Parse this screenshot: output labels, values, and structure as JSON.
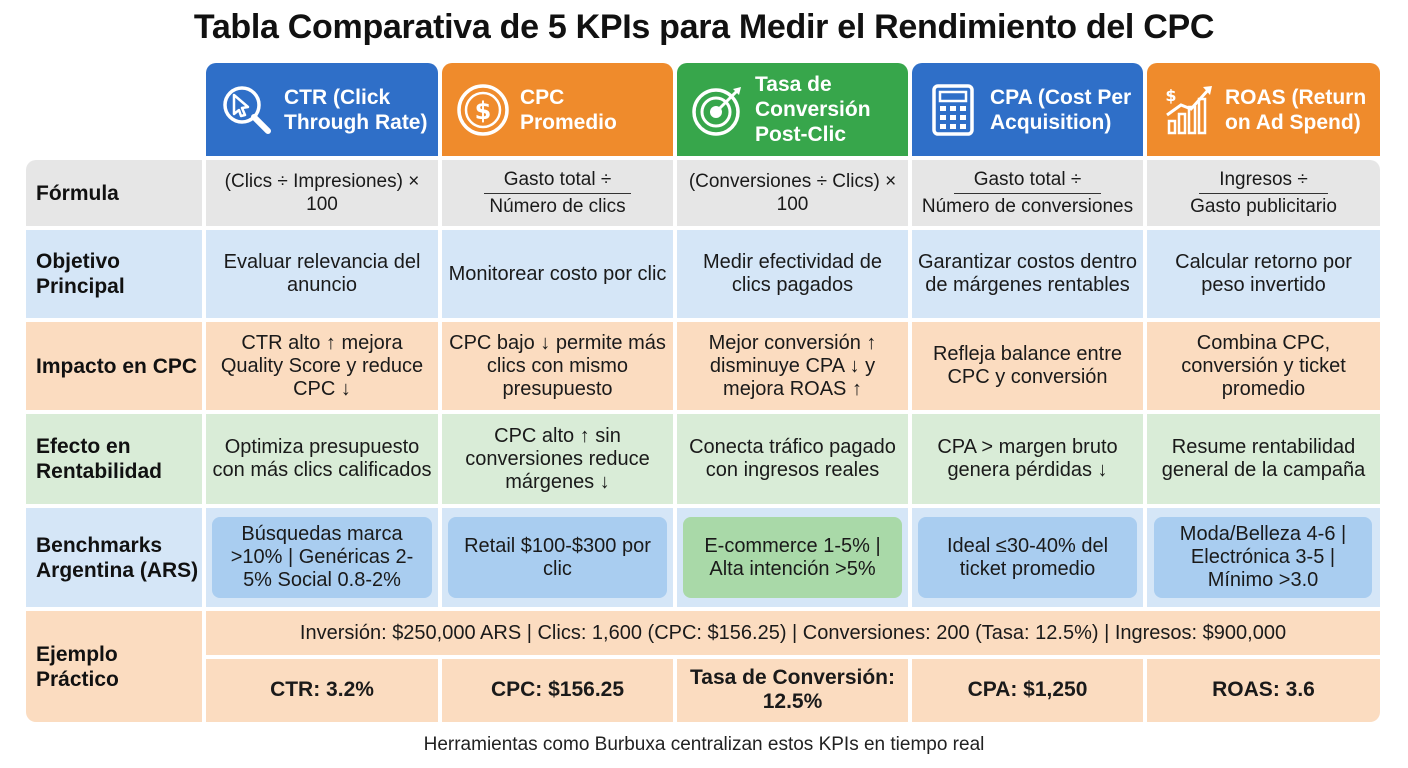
{
  "title": "Tabla Comparativa de 5 KPIs para Medir el Rendimiento del CPC",
  "columns": [
    {
      "label": "CTR (Click Through Rate)",
      "icon": "cursor-magnifier-icon",
      "color": "#2f6fc8"
    },
    {
      "label": "CPC Promedio",
      "icon": "dollar-coin-icon",
      "color": "#ef8b2c"
    },
    {
      "label": "Tasa de Conversión Post-Clic",
      "icon": "target-arrow-icon",
      "color": "#37a64b"
    },
    {
      "label": "CPA (Cost Per Acquisition)",
      "icon": "calculator-icon",
      "color": "#2f6fc8"
    },
    {
      "label": "ROAS (Return on Ad Spend)",
      "icon": "growth-chart-icon",
      "color": "#ef8b2c"
    }
  ],
  "rows": {
    "formula": {
      "label": "Fórmula",
      "cells": [
        {
          "text": "(Clics ÷ Impresiones) × 100"
        },
        {
          "num": "Gasto total ÷",
          "den": "Número de clics"
        },
        {
          "text": "(Conversiones ÷ Clics) × 100"
        },
        {
          "num": "Gasto total ÷",
          "den": "Número de conversiones"
        },
        {
          "num": "Ingresos ÷",
          "den": "Gasto publicitario"
        }
      ]
    },
    "objetivo": {
      "label": "Objetivo Principal",
      "cells": [
        "Evaluar relevancia del anuncio",
        "Monitorear costo por clic",
        "Medir efectividad de clics pagados",
        "Garantizar costos dentro de márgenes rentables",
        "Calcular retorno por peso invertido"
      ]
    },
    "impacto": {
      "label": "Impacto en CPC",
      "cells": [
        "CTR alto ↑ mejora Quality Score y reduce CPC ↓",
        "CPC bajo ↓ permite más clics con mismo presupuesto",
        "Mejor conversión ↑ disminuye CPA ↓ y mejora ROAS ↑",
        "Refleja balance entre CPC y conversión",
        "Combina CPC, conversión y ticket promedio"
      ]
    },
    "efecto": {
      "label": "Efecto en Rentabilidad",
      "cells": [
        "Optimiza presupuesto con más clics calificados",
        "CPC alto ↑ sin conversiones reduce márgenes ↓",
        "Conecta tráfico pagado con ingresos reales",
        "CPA > margen bruto genera pérdidas ↓",
        "Resume rentabilidad general de la campaña"
      ]
    },
    "benchmarks": {
      "label": "Benchmarks Argentina (ARS)",
      "cells": [
        "Búsquedas marca >10% | Genéricas 2-5% Social 0.8-2%",
        "Retail $100-$300 por clic",
        "E-commerce 1-5% | Alta intención >5%",
        "Ideal ≤30-40% del ticket promedio",
        "Moda/Belleza 4-6 | Electrónica 3-5 | Mínimo >3.0"
      ]
    },
    "ejemplo": {
      "label": "Ejemplo Práctico",
      "summary": "Inversión: $250,000 ARS | Clics: 1,600 (CPC: $156.25) | Conversiones: 200 (Tasa: 12.5%) | Ingresos: $900,000",
      "cells": [
        "CTR: 3.2%",
        "CPC: $156.25",
        "Tasa de Conversión: 12.5%",
        "CPA: $1,250",
        "ROAS: 3.6"
      ]
    }
  },
  "footer": "Herramientas como Burbuxa centralizan estos KPIs en tiempo real"
}
